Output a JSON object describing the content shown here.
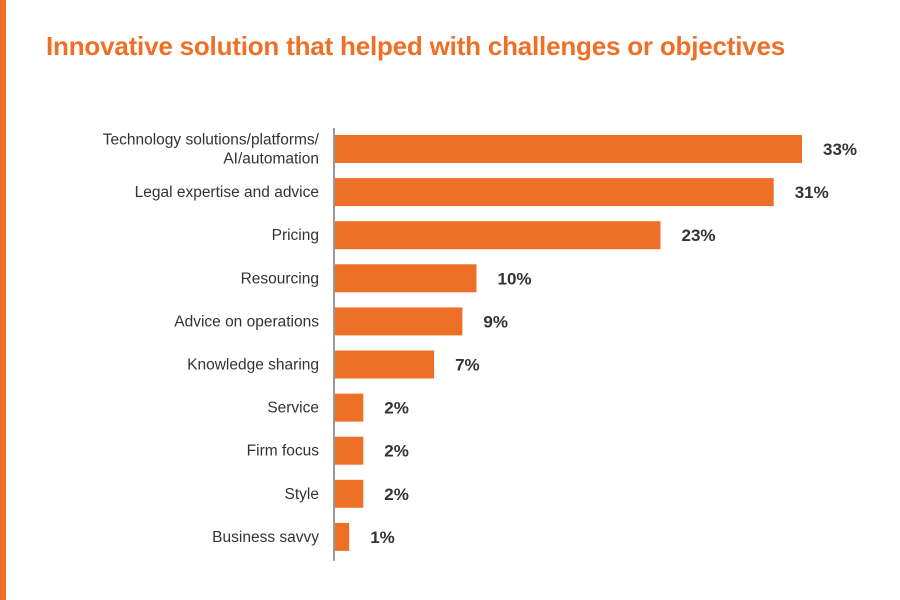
{
  "colors": {
    "accent": "#EE7027",
    "bar": "#EE7027",
    "text": "#333333",
    "axis": "#333333",
    "background": "#FFFFFF"
  },
  "chart_data": {
    "type": "bar",
    "orientation": "horizontal",
    "title": "Innovative solution that helped with challenges or objectives",
    "xlabel": "",
    "ylabel": "",
    "categories": [
      "Technology solutions/platforms/\nAI/automation",
      "Legal expertise and advice",
      "Pricing",
      "Resourcing",
      "Advice on operations",
      "Knowledge sharing",
      "Service",
      "Firm focus",
      "Style",
      "Business savvy"
    ],
    "values": [
      33,
      31,
      23,
      10,
      9,
      7,
      2,
      2,
      2,
      1
    ],
    "value_labels": [
      "33%",
      "31%",
      "23%",
      "10%",
      "9%",
      "7%",
      "2%",
      "2%",
      "2%",
      "1%"
    ],
    "unit": "%",
    "xlim": [
      0,
      33
    ],
    "grid": false,
    "legend": "none"
  }
}
